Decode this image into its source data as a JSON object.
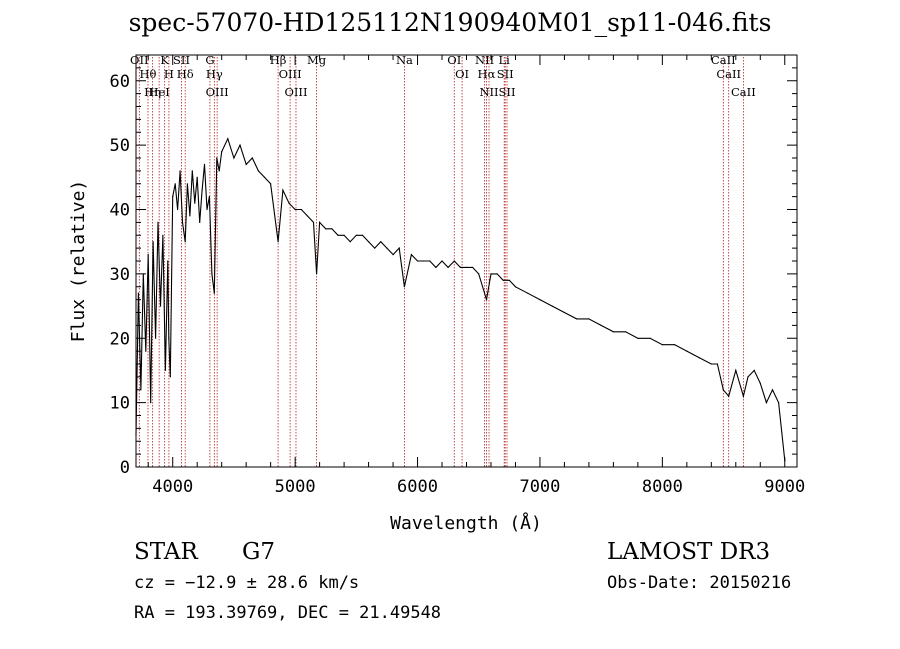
{
  "chart_data": {
    "type": "line",
    "title": "spec-57070-HD125112N190940M01_sp11-046.fits",
    "xlabel": "Wavelength (Å)",
    "ylabel": "Flux (relative)",
    "xlim": [
      3700,
      9100
    ],
    "ylim": [
      0,
      64
    ],
    "xticks": [
      4000,
      5000,
      6000,
      7000,
      8000,
      9000
    ],
    "yticks": [
      0,
      10,
      20,
      30,
      40,
      50,
      60
    ],
    "grid": false,
    "line_color": "#000000",
    "marker_color": "#b22222",
    "series": [
      {
        "name": "flux",
        "x": [
          3700,
          3720,
          3740,
          3760,
          3780,
          3800,
          3820,
          3840,
          3860,
          3880,
          3900,
          3920,
          3940,
          3960,
          3968,
          3980,
          4000,
          4020,
          4040,
          4060,
          4080,
          4102,
          4120,
          4140,
          4160,
          4180,
          4200,
          4220,
          4240,
          4260,
          4280,
          4300,
          4320,
          4340,
          4360,
          4380,
          4400,
          4450,
          4500,
          4550,
          4600,
          4650,
          4700,
          4750,
          4800,
          4861,
          4900,
          4950,
          5000,
          5050,
          5100,
          5150,
          5175,
          5200,
          5250,
          5300,
          5350,
          5400,
          5450,
          5500,
          5550,
          5600,
          5650,
          5700,
          5750,
          5800,
          5850,
          5893,
          5950,
          6000,
          6050,
          6100,
          6150,
          6200,
          6250,
          6300,
          6350,
          6400,
          6450,
          6500,
          6563,
          6600,
          6650,
          6700,
          6750,
          6800,
          6900,
          7000,
          7100,
          7200,
          7300,
          7400,
          7500,
          7600,
          7700,
          7800,
          7900,
          8000,
          8100,
          8200,
          8300,
          8400,
          8450,
          8498,
          8542,
          8600,
          8662,
          8700,
          8750,
          8800,
          8850,
          8900,
          8950,
          9000
        ],
        "y": [
          5,
          27,
          12,
          30,
          18,
          33,
          10,
          35,
          20,
          38,
          25,
          36,
          15,
          32,
          20,
          14,
          42,
          44,
          40,
          46,
          38,
          35,
          44,
          39,
          46,
          41,
          45,
          38,
          43,
          47,
          40,
          42,
          30,
          27,
          48,
          46,
          49,
          51,
          48,
          50,
          47,
          48,
          46,
          45,
          44,
          35,
          43,
          41,
          40,
          40,
          39,
          38,
          30,
          38,
          37,
          37,
          36,
          36,
          35,
          36,
          36,
          35,
          34,
          35,
          34,
          33,
          34,
          28,
          33,
          32,
          32,
          32,
          31,
          32,
          31,
          32,
          31,
          31,
          31,
          30,
          26,
          30,
          30,
          29,
          29,
          28,
          27,
          26,
          25,
          24,
          23,
          23,
          22,
          21,
          21,
          20,
          20,
          19,
          19,
          18,
          17,
          16,
          16,
          12,
          11,
          15,
          11,
          14,
          15,
          13,
          10,
          12,
          10,
          1
        ]
      }
    ],
    "lines": [
      {
        "wl": 3727,
        "labels": [
          "OII"
        ]
      },
      {
        "wl": 3798,
        "labels": [
          "Hθ"
        ]
      },
      {
        "wl": 3835,
        "labels": [
          "Hη"
        ]
      },
      {
        "wl": 3889,
        "labels": [
          "HeI"
        ]
      },
      {
        "wl": 3934,
        "labels": [
          "K"
        ]
      },
      {
        "wl": 3969,
        "labels": [
          "H"
        ]
      },
      {
        "wl": 4072,
        "labels": [
          "SII"
        ]
      },
      {
        "wl": 4102,
        "labels": [
          "Hδ"
        ]
      },
      {
        "wl": 4304,
        "labels": [
          "G"
        ]
      },
      {
        "wl": 4340,
        "labels": [
          "Hγ"
        ]
      },
      {
        "wl": 4363,
        "labels": [
          "OIII"
        ]
      },
      {
        "wl": 4861,
        "labels": [
          "Hβ"
        ]
      },
      {
        "wl": 4959,
        "labels": [
          "OIII"
        ]
      },
      {
        "wl": 5007,
        "labels": [
          "OIII"
        ]
      },
      {
        "wl": 5175,
        "labels": [
          "Mg"
        ]
      },
      {
        "wl": 5893,
        "labels": [
          "Na"
        ]
      },
      {
        "wl": 6300,
        "labels": [
          "OI"
        ]
      },
      {
        "wl": 6364,
        "labels": [
          "OI"
        ]
      },
      {
        "wl": 6548,
        "labels": [
          "NII"
        ]
      },
      {
        "wl": 6563,
        "labels": [
          "Hα"
        ]
      },
      {
        "wl": 6584,
        "labels": [
          "NII"
        ]
      },
      {
        "wl": 6708,
        "labels": [
          "Li"
        ]
      },
      {
        "wl": 6716,
        "labels": [
          "SII"
        ]
      },
      {
        "wl": 6731,
        "labels": [
          "SII"
        ]
      },
      {
        "wl": 8498,
        "labels": [
          "CaII"
        ]
      },
      {
        "wl": 8542,
        "labels": [
          "CaII"
        ]
      },
      {
        "wl": 8662,
        "labels": [
          "CaII"
        ]
      }
    ]
  },
  "info": {
    "object_class": "STAR",
    "subclass": "G7",
    "survey": "LAMOST DR3",
    "cz": "cz = −12.9 ± 28.6 km/s",
    "obs_date": "Obs-Date: 20150216",
    "coords": "RA = 193.39769, DEC =  21.49548"
  }
}
